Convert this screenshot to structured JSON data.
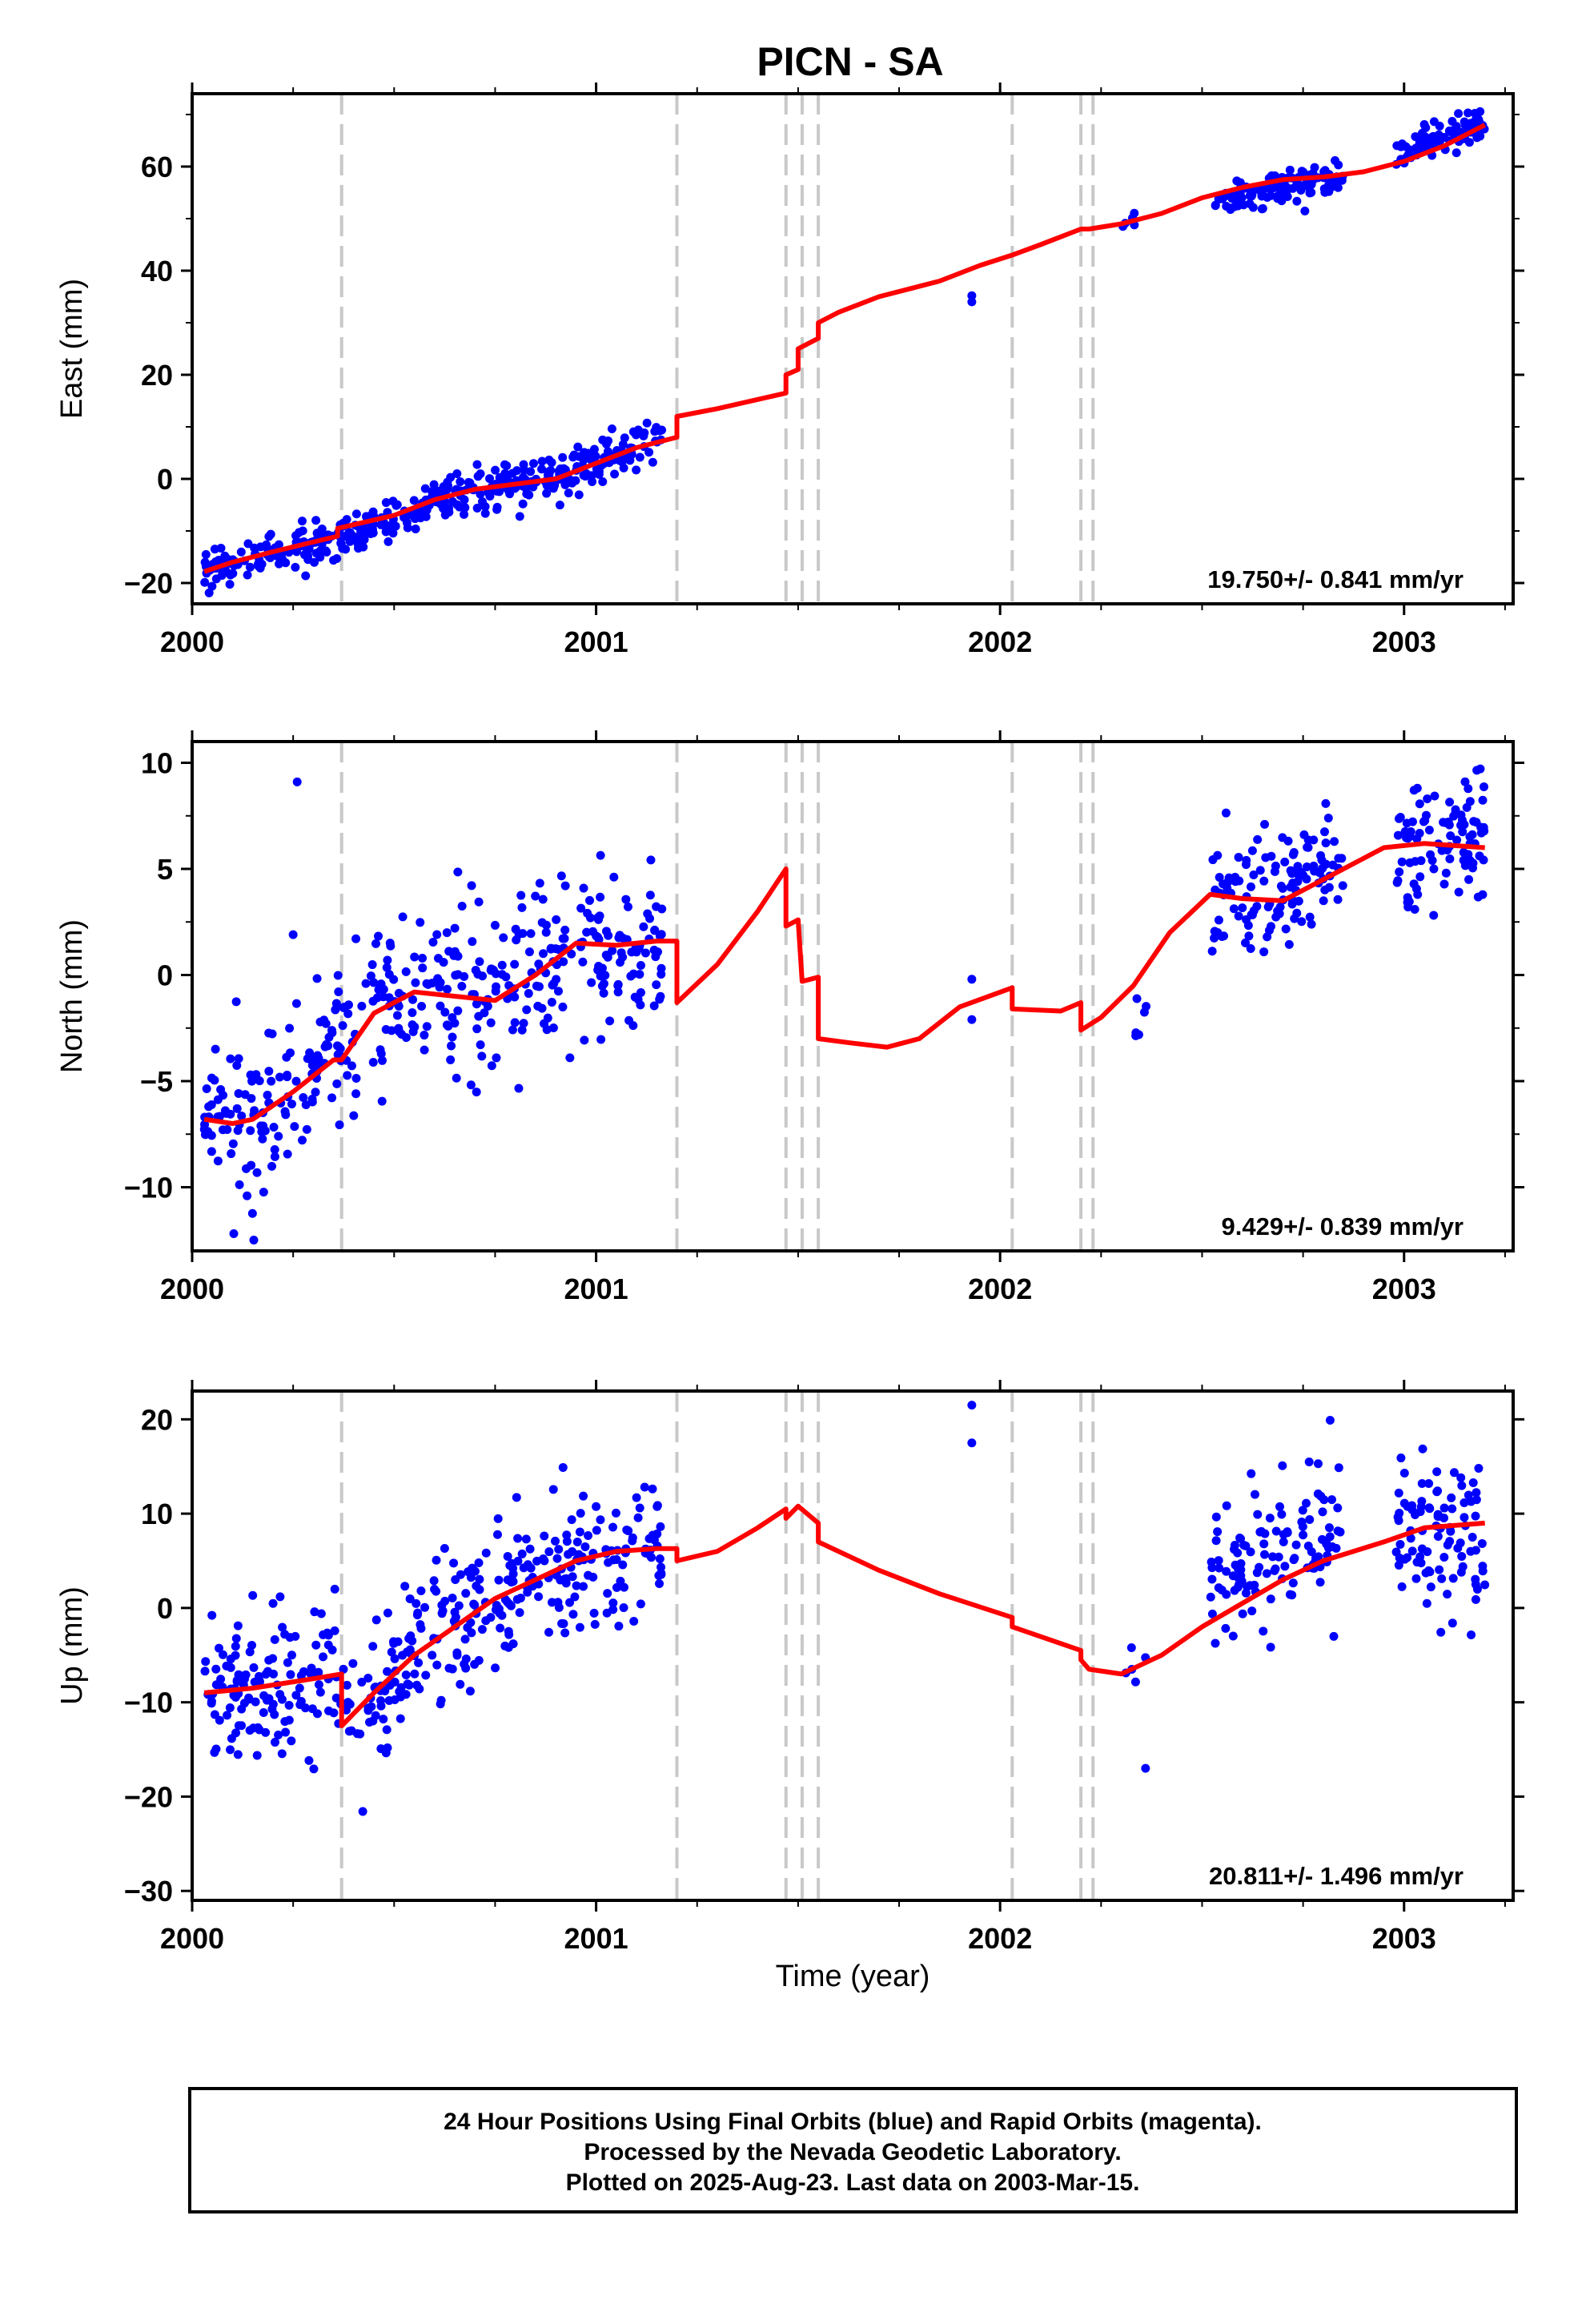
{
  "chart_data": {
    "type": "scatter",
    "title": "PICN - SA",
    "xlabel": "Time (year)",
    "x_ticks": [
      "2000",
      "2001",
      "2002",
      "2003"
    ],
    "xlim": [
      2000.0,
      2003.27
    ],
    "panels": [
      {
        "ylabel": "East (mm)",
        "ylim": [
          -24,
          74
        ],
        "y_ticks": [
          -20,
          0,
          20,
          40,
          60
        ],
        "rate": "19.750+/- 0.841 mm/yr",
        "model_pts": [
          [
            2000.03,
            -17.8
          ],
          [
            2000.1,
            -16
          ],
          [
            2000.2,
            -14
          ],
          [
            2000.36,
            -11
          ],
          [
            2000.36,
            -9.5
          ],
          [
            2000.5,
            -7
          ],
          [
            2000.6,
            -4
          ],
          [
            2000.7,
            -2
          ],
          [
            2000.8,
            -1
          ],
          [
            2000.9,
            0
          ],
          [
            2001.0,
            3
          ],
          [
            2001.1,
            6
          ],
          [
            2001.2,
            8
          ],
          [
            2001.2,
            12
          ],
          [
            2001.3,
            13.5
          ],
          [
            2001.47,
            16.5
          ],
          [
            2001.47,
            20
          ],
          [
            2001.5,
            21
          ],
          [
            2001.5,
            25
          ],
          [
            2001.55,
            27
          ],
          [
            2001.55,
            30
          ],
          [
            2001.6,
            32
          ],
          [
            2001.7,
            35
          ],
          [
            2001.85,
            38
          ],
          [
            2001.95,
            41
          ],
          [
            2002.03,
            43
          ],
          [
            2002.1,
            45
          ],
          [
            2002.2,
            48
          ],
          [
            2002.22,
            48
          ],
          [
            2002.3,
            49
          ],
          [
            2002.4,
            51
          ],
          [
            2002.5,
            54
          ],
          [
            2002.6,
            56
          ],
          [
            2002.7,
            57.5
          ],
          [
            2002.8,
            58
          ],
          [
            2002.9,
            59
          ],
          [
            2003.0,
            61
          ],
          [
            2003.1,
            64
          ],
          [
            2003.2,
            68
          ]
        ],
        "obs_groups": [
          {
            "x0": 2000.03,
            "x1": 2001.17,
            "n": 420,
            "trend": [
              [
                2000.03,
                -17.5
              ],
              [
                2000.36,
                -11
              ],
              [
                2000.5,
                -7.5
              ],
              [
                2000.7,
                -2
              ],
              [
                2000.9,
                0
              ],
              [
                2001.0,
                3
              ],
              [
                2001.17,
                8
              ]
            ],
            "sd": 2.0
          },
          {
            "x0": 2002.3,
            "x1": 2002.35,
            "n": 6,
            "trend": [
              [
                2002.3,
                48
              ],
              [
                2002.35,
                50
              ]
            ],
            "sd": 1.2
          },
          {
            "x0": 2002.52,
            "x1": 2002.85,
            "n": 120,
            "trend": [
              [
                2002.52,
                53
              ],
              [
                2002.85,
                58
              ]
            ],
            "sd": 1.6
          },
          {
            "x0": 2002.98,
            "x1": 2003.2,
            "n": 95,
            "trend": [
              [
                2002.98,
                63
              ],
              [
                2003.2,
                68
              ]
            ],
            "sd": 1.6
          }
        ],
        "extra_pts": [
          [
            2001.93,
            34
          ],
          [
            2001.93,
            35.2
          ]
        ]
      },
      {
        "ylabel": "North (mm)",
        "ylim": [
          -13,
          11
        ],
        "y_ticks": [
          -10,
          -5,
          0,
          5,
          10
        ],
        "rate": "9.429+/- 0.839 mm/yr",
        "model_pts": [
          [
            2000.03,
            -6.8
          ],
          [
            2000.1,
            -7
          ],
          [
            2000.15,
            -6.8
          ],
          [
            2000.25,
            -5.5
          ],
          [
            2000.35,
            -4
          ],
          [
            2000.37,
            -4
          ],
          [
            2000.45,
            -1.8
          ],
          [
            2000.55,
            -0.8
          ],
          [
            2000.65,
            -1
          ],
          [
            2000.75,
            -1.2
          ],
          [
            2000.85,
            0
          ],
          [
            2000.95,
            1.5
          ],
          [
            2001.05,
            1.4
          ],
          [
            2001.15,
            1.6
          ],
          [
            2001.2,
            1.6
          ],
          [
            2001.2,
            -1.3
          ],
          [
            2001.3,
            0.5
          ],
          [
            2001.4,
            3
          ],
          [
            2001.47,
            5
          ],
          [
            2001.47,
            2.3
          ],
          [
            2001.5,
            2.6
          ],
          [
            2001.51,
            -0.3
          ],
          [
            2001.55,
            -0.1
          ],
          [
            2001.55,
            -3
          ],
          [
            2001.63,
            -3.2
          ],
          [
            2001.72,
            -3.4
          ],
          [
            2001.8,
            -3
          ],
          [
            2001.9,
            -1.5
          ],
          [
            2002.03,
            -0.6
          ],
          [
            2002.03,
            -1.6
          ],
          [
            2002.15,
            -1.7
          ],
          [
            2002.2,
            -1.3
          ],
          [
            2002.2,
            -2.6
          ],
          [
            2002.25,
            -2
          ],
          [
            2002.33,
            -0.5
          ],
          [
            2002.42,
            2
          ],
          [
            2002.52,
            3.8
          ],
          [
            2002.6,
            3.6
          ],
          [
            2002.7,
            3.5
          ],
          [
            2002.8,
            4.5
          ],
          [
            2002.95,
            6
          ],
          [
            2003.05,
            6.2
          ],
          [
            2003.2,
            6
          ]
        ],
        "obs_groups": [
          {
            "x0": 2000.03,
            "x1": 2001.17,
            "n": 420,
            "trend": [
              [
                2000.03,
                -6.5
              ],
              [
                2000.15,
                -7
              ],
              [
                2000.3,
                -5
              ],
              [
                2000.45,
                -1
              ],
              [
                2000.7,
                -1
              ],
              [
                2000.95,
                1
              ],
              [
                2001.17,
                1.5
              ]
            ],
            "sd": 2.0
          },
          {
            "x0": 2002.33,
            "x1": 2002.37,
            "n": 6,
            "trend": [
              [
                2002.33,
                -2
              ],
              [
                2002.37,
                -1.5
              ]
            ],
            "sd": 0.8
          },
          {
            "x0": 2002.52,
            "x1": 2002.85,
            "n": 120,
            "trend": [
              [
                2002.52,
                3.5
              ],
              [
                2002.85,
                5
              ]
            ],
            "sd": 1.6
          },
          {
            "x0": 2002.98,
            "x1": 2003.2,
            "n": 95,
            "trend": [
              [
                2002.98,
                6
              ],
              [
                2003.2,
                6.5
              ]
            ],
            "sd": 1.7
          }
        ],
        "extra_pts": [
          [
            2001.93,
            -0.2
          ],
          [
            2001.93,
            -2.1
          ],
          [
            2000.26,
            9.1
          ],
          [
            2000.25,
            1.9
          ]
        ]
      },
      {
        "ylabel": "Up (mm)",
        "ylim": [
          -31,
          23
        ],
        "y_ticks": [
          -30,
          -20,
          -10,
          0,
          10,
          20
        ],
        "rate": "20.811+/- 1.496 mm/yr",
        "model_pts": [
          [
            2000.03,
            -9
          ],
          [
            2000.15,
            -8.5
          ],
          [
            2000.3,
            -7.5
          ],
          [
            2000.37,
            -7
          ],
          [
            2000.37,
            -12.5
          ],
          [
            2000.45,
            -9
          ],
          [
            2000.55,
            -5
          ],
          [
            2000.65,
            -2
          ],
          [
            2000.75,
            1
          ],
          [
            2000.85,
            3
          ],
          [
            2000.95,
            5
          ],
          [
            2001.05,
            6
          ],
          [
            2001.15,
            6.3
          ],
          [
            2001.2,
            6.3
          ],
          [
            2001.2,
            5
          ],
          [
            2001.3,
            6
          ],
          [
            2001.4,
            8.5
          ],
          [
            2001.47,
            10.5
          ],
          [
            2001.47,
            9.5
          ],
          [
            2001.5,
            10.8
          ],
          [
            2001.55,
            9
          ],
          [
            2001.55,
            7
          ],
          [
            2001.7,
            4
          ],
          [
            2001.85,
            1.5
          ],
          [
            2002.03,
            -1
          ],
          [
            2002.03,
            -2
          ],
          [
            2002.2,
            -4.5
          ],
          [
            2002.2,
            -5.5
          ],
          [
            2002.22,
            -6.5
          ],
          [
            2002.3,
            -7
          ],
          [
            2002.4,
            -5
          ],
          [
            2002.5,
            -2
          ],
          [
            2002.6,
            0.5
          ],
          [
            2002.7,
            3
          ],
          [
            2002.8,
            5
          ],
          [
            2002.95,
            7
          ],
          [
            2003.05,
            8.5
          ],
          [
            2003.2,
            9
          ]
        ],
        "obs_groups": [
          {
            "x0": 2000.03,
            "x1": 2000.36,
            "n": 130,
            "trend": [
              [
                2000.03,
                -8
              ],
              [
                2000.36,
                -8
              ]
            ],
            "sd": 4.2
          },
          {
            "x0": 2000.36,
            "x1": 2001.17,
            "n": 290,
            "trend": [
              [
                2000.36,
                -12
              ],
              [
                2000.55,
                -5
              ],
              [
                2000.75,
                1
              ],
              [
                2000.95,
                4.5
              ],
              [
                2001.17,
                7
              ]
            ],
            "sd": 3.8
          },
          {
            "x0": 2002.31,
            "x1": 2002.36,
            "n": 5,
            "trend": [
              [
                2002.31,
                -6
              ],
              [
                2002.36,
                -5
              ]
            ],
            "sd": 1.2
          },
          {
            "x0": 2002.52,
            "x1": 2002.85,
            "n": 120,
            "trend": [
              [
                2002.52,
                2
              ],
              [
                2002.85,
                9
              ]
            ],
            "sd": 4.0
          },
          {
            "x0": 2002.98,
            "x1": 2003.2,
            "n": 95,
            "trend": [
              [
                2002.98,
                9
              ],
              [
                2003.2,
                7
              ]
            ],
            "sd": 4.2
          }
        ],
        "extra_pts": [
          [
            2001.93,
            21.5
          ],
          [
            2001.93,
            17.5
          ],
          [
            2002.36,
            -17
          ]
        ]
      }
    ],
    "breaks": [
      2000.37,
      2001.2,
      2001.47,
      2001.51,
      2001.55,
      2002.03,
      2002.2,
      2002.23
    ],
    "colors": {
      "obs": "#0000ff",
      "model": "#ff0000",
      "break": "#c8c8c8"
    }
  },
  "footer": {
    "line1": "24 Hour Positions Using Final Orbits (blue) and Rapid Orbits (magenta).",
    "line2": "Processed by the Nevada Geodetic Laboratory.",
    "line3": "Plotted on 2025-Aug-23. Last data on 2003-Mar-15."
  }
}
